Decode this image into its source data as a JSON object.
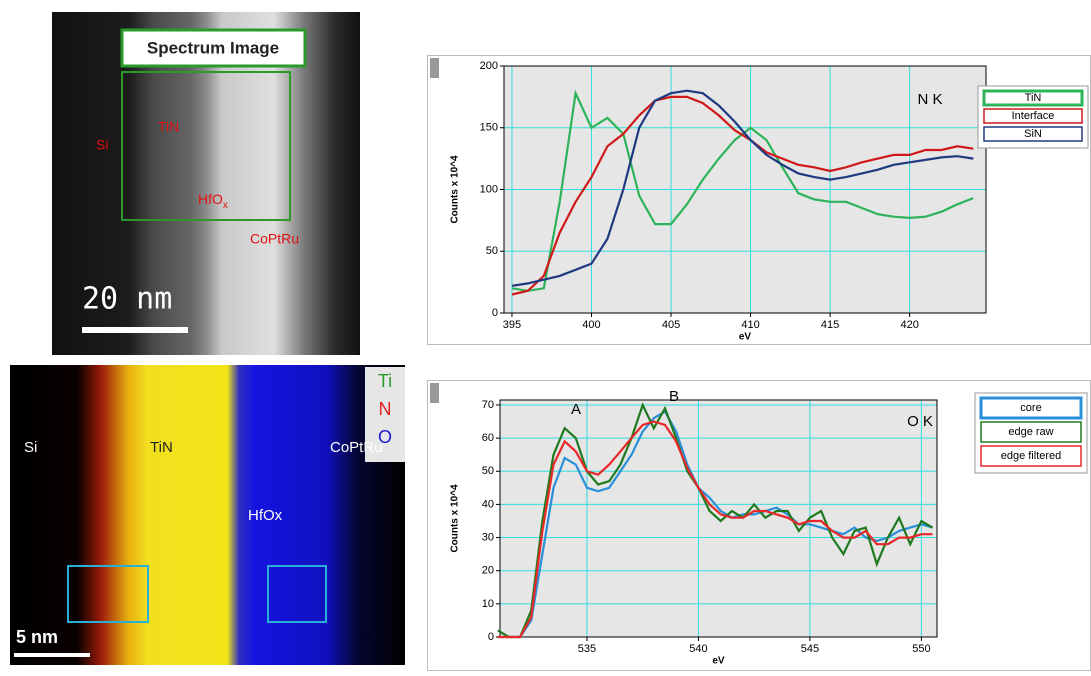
{
  "images": [
    {
      "title": "Spectrum Image",
      "labels": [
        "Si",
        "TiN",
        {
          "text": "HfO",
          "subscript": "x"
        },
        "CoPtRu"
      ],
      "scale_bar": "20 nm"
    },
    {
      "labels": [
        "Si",
        "TiN",
        "HfOx",
        "CoPtRu"
      ],
      "channels": [
        {
          "name": "Ti",
          "color": "#2a9a2a"
        },
        {
          "name": "N",
          "color": "#e02020"
        },
        {
          "name": "O",
          "color": "#1a1acc"
        }
      ],
      "scale_bar": "5 nm"
    }
  ],
  "chart_data": [
    {
      "type": "line",
      "xlabel": "eV",
      "ylabel": "Counts x 10^4",
      "annotations": [
        "N K"
      ],
      "grid": true,
      "legend_position": "right",
      "x": [
        395,
        396,
        397,
        398,
        399,
        400,
        401,
        402,
        403,
        404,
        405,
        406,
        407,
        408,
        409,
        410,
        411,
        412,
        413,
        414,
        415,
        416,
        417,
        418,
        419,
        420,
        421,
        422,
        423,
        424
      ],
      "xlim": [
        394.5,
        424.8
      ],
      "xticks": [
        395,
        400,
        405,
        410,
        415,
        420
      ],
      "ylim": [
        0,
        200
      ],
      "yticks": [
        0,
        50,
        100,
        150,
        200
      ],
      "series": [
        {
          "name": "TiN",
          "color": "#2db35a",
          "values": [
            20,
            18,
            20,
            90,
            178,
            150,
            158,
            145,
            95,
            72,
            72,
            88,
            108,
            125,
            140,
            150,
            140,
            118,
            97,
            92,
            90,
            90,
            85,
            80,
            78,
            77,
            78,
            82,
            88,
            93
          ]
        },
        {
          "name": "Interface",
          "color": "#d01818",
          "values": [
            15,
            18,
            30,
            65,
            90,
            110,
            135,
            145,
            160,
            172,
            175,
            175,
            170,
            160,
            148,
            140,
            130,
            125,
            120,
            118,
            115,
            118,
            122,
            125,
            128,
            128,
            132,
            132,
            135,
            133
          ]
        },
        {
          "name": "SiN",
          "color": "#1f3a80",
          "values": [
            22,
            24,
            27,
            30,
            35,
            40,
            60,
            100,
            150,
            172,
            178,
            180,
            178,
            168,
            155,
            140,
            128,
            120,
            113,
            110,
            108,
            110,
            113,
            116,
            120,
            122,
            124,
            126,
            127,
            125
          ]
        }
      ]
    },
    {
      "type": "line",
      "xlabel": "eV",
      "ylabel": "Counts x 10^4",
      "annotations": [
        "A",
        "B",
        "O K"
      ],
      "grid": true,
      "legend_position": "right",
      "x": [
        531,
        531.5,
        532,
        532.5,
        533,
        533.5,
        534,
        534.5,
        535,
        535.5,
        536,
        536.5,
        537,
        537.5,
        538,
        538.5,
        539,
        539.5,
        540,
        540.5,
        541,
        541.5,
        542,
        542.5,
        543,
        543.5,
        544,
        544.5,
        545,
        545.5,
        546,
        546.5,
        547,
        547.5,
        548,
        548.5,
        549,
        549.5,
        550,
        550.5
      ],
      "xlim": [
        531.1,
        550.7
      ],
      "xticks": [
        535,
        540,
        545,
        550
      ],
      "ylim": [
        0,
        71.5
      ],
      "yticks": [
        0,
        10,
        20,
        30,
        40,
        50,
        60,
        70
      ],
      "series": [
        {
          "name": "core",
          "color": "#2a8fd8",
          "values": [
            0,
            0,
            0,
            5,
            25,
            45,
            54,
            52,
            45,
            44,
            45,
            50,
            55,
            62,
            66,
            68,
            62,
            52,
            45,
            42,
            38,
            36,
            37,
            37,
            38,
            39,
            37,
            34,
            34,
            33,
            32,
            31,
            33,
            30,
            29,
            30,
            32,
            33,
            34,
            33
          ]
        },
        {
          "name": "edge raw",
          "color": "#1e7a1e",
          "values": [
            2,
            0,
            0,
            8,
            35,
            55,
            63,
            60,
            50,
            46,
            47,
            52,
            60,
            70,
            63,
            69,
            60,
            50,
            45,
            38,
            35,
            38,
            36,
            40,
            36,
            38,
            38,
            32,
            36,
            38,
            30,
            25,
            32,
            33,
            22,
            30,
            36,
            28,
            35,
            33
          ]
        },
        {
          "name": "edge filtered",
          "color": "#e82828",
          "values": [
            0,
            0,
            0,
            6,
            32,
            52,
            59,
            56,
            50,
            49,
            52,
            56,
            60,
            64,
            65,
            64,
            59,
            51,
            45,
            40,
            37,
            36,
            36,
            38,
            38,
            37,
            36,
            34,
            35,
            35,
            32,
            30,
            30,
            32,
            28,
            28,
            30,
            30,
            31,
            31
          ]
        }
      ]
    }
  ]
}
